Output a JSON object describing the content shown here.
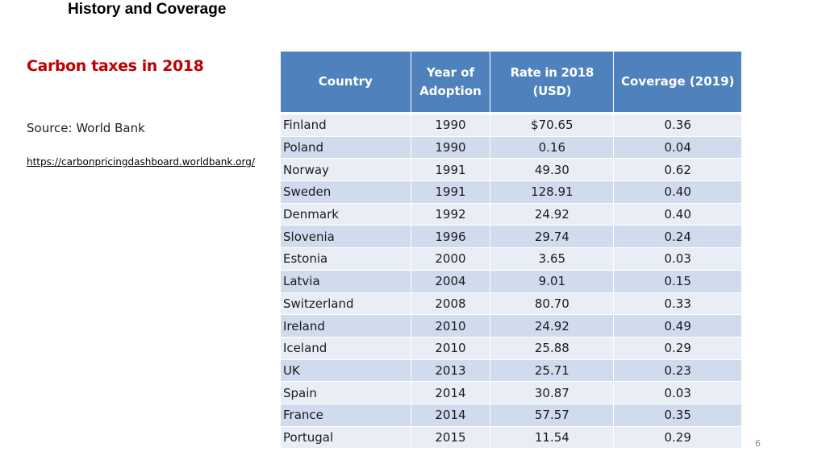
{
  "page": {
    "title": "History and Coverage",
    "subtitle": "Carbon taxes in 2018",
    "source": "Source: World Bank",
    "source_url": "https://carbonpricingdashboard.worldbank.org/",
    "page_number": "6"
  },
  "table": {
    "headers": {
      "country": "Country",
      "year_line1": "Year of",
      "year_line2": "Adoption",
      "rate": "Rate in 2018 (USD)",
      "coverage": "Coverage  (2019)"
    },
    "rows": [
      {
        "country": "Finland",
        "year": "1990",
        "rate": "$70.65",
        "coverage": "0.36"
      },
      {
        "country": "Poland",
        "year": "1990",
        "rate": "0.16",
        "coverage": "0.04"
      },
      {
        "country": "Norway",
        "year": "1991",
        "rate": "49.30",
        "coverage": "0.62"
      },
      {
        "country": "Sweden",
        "year": "1991",
        "rate": "128.91",
        "coverage": "0.40"
      },
      {
        "country": "Denmark",
        "year": "1992",
        "rate": "24.92",
        "coverage": "0.40"
      },
      {
        "country": "Slovenia",
        "year": "1996",
        "rate": "29.74",
        "coverage": "0.24"
      },
      {
        "country": "Estonia",
        "year": "2000",
        "rate": "3.65",
        "coverage": "0.03"
      },
      {
        "country": "Latvia",
        "year": "2004",
        "rate": "9.01",
        "coverage": "0.15"
      },
      {
        "country": "Switzerland",
        "year": "2008",
        "rate": "80.70",
        "coverage": "0.33"
      },
      {
        "country": "Ireland",
        "year": "2010",
        "rate": "24.92",
        "coverage": "0.49"
      },
      {
        "country": "Iceland",
        "year": "2010",
        "rate": "25.88",
        "coverage": "0.29"
      },
      {
        "country": "UK",
        "year": "2013",
        "rate": "25.71",
        "coverage": "0.23"
      },
      {
        "country": "Spain",
        "year": "2014",
        "rate": "30.87",
        "coverage": "0.03"
      },
      {
        "country": "France",
        "year": "2014",
        "rate": "57.57",
        "coverage": "0.35"
      },
      {
        "country": "Portugal",
        "year": "2015",
        "rate": "11.54",
        "coverage": "0.29"
      }
    ]
  },
  "colors": {
    "header_bg": "#4f81bd",
    "row_light": "#e9eef6",
    "row_dark": "#d0dbee",
    "subtitle": "#c00000"
  }
}
